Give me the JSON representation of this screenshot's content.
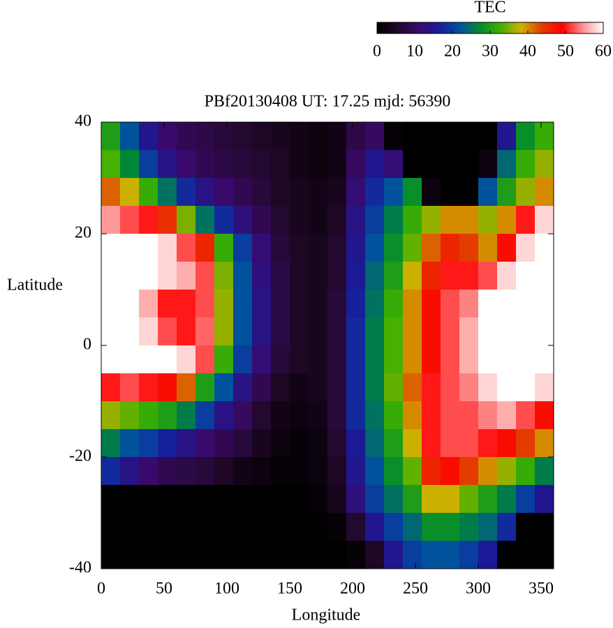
{
  "chart_data": {
    "type": "heatmap",
    "title": "PBf20130408  UT: 17.25  mjd: 56390",
    "x_label": "Longitude",
    "y_label": "Latitude",
    "xlim": [
      0,
      360
    ],
    "ylim": [
      -40,
      40
    ],
    "xticks": [
      0,
      50,
      100,
      150,
      200,
      250,
      300,
      350
    ],
    "yticks": [
      -40,
      -20,
      0,
      20,
      40
    ],
    "x": [
      7.5,
      22.5,
      37.5,
      52.5,
      67.5,
      82.5,
      97.5,
      112.5,
      127.5,
      142.5,
      157.5,
      172.5,
      187.5,
      202.5,
      217.5,
      232.5,
      247.5,
      262.5,
      277.5,
      292.5,
      307.5,
      322.5,
      337.5,
      352.5
    ],
    "y": [
      37.5,
      32.5,
      27.5,
      22.5,
      17.5,
      12.5,
      7.5,
      2.5,
      -2.5,
      -7.5,
      -12.5,
      -17.5,
      -22.5,
      -27.5,
      -32.5,
      -37.5
    ],
    "z": [
      [
        30,
        22,
        15,
        11,
        9,
        8,
        7,
        6,
        5,
        4,
        3,
        2,
        3,
        8,
        10,
        1,
        0,
        0,
        0,
        0,
        0,
        15,
        28,
        32
      ],
      [
        33,
        27,
        20,
        14,
        11,
        9,
        8,
        7,
        6,
        5,
        3,
        2,
        3,
        10,
        15,
        12,
        0,
        0,
        0,
        0,
        2,
        24,
        32,
        36
      ],
      [
        42,
        38,
        32,
        25,
        18,
        14,
        11,
        9,
        7,
        5,
        4,
        3,
        4,
        12,
        18,
        22,
        28,
        2,
        0,
        0,
        22,
        30,
        36,
        40
      ],
      [
        55,
        52,
        50,
        45,
        35,
        25,
        18,
        13,
        9,
        6,
        4,
        3,
        5,
        14,
        20,
        26,
        32,
        36,
        40,
        40,
        36,
        40,
        50,
        58
      ],
      [
        60,
        60,
        60,
        58,
        52,
        46,
        32,
        20,
        12,
        7,
        5,
        4,
        6,
        15,
        22,
        28,
        34,
        42,
        46,
        44,
        40,
        48,
        58,
        60
      ],
      [
        60,
        60,
        60,
        58,
        56,
        52,
        35,
        22,
        13,
        8,
        5,
        4,
        6,
        16,
        24,
        30,
        38,
        46,
        50,
        50,
        52,
        58,
        60,
        60
      ],
      [
        60,
        60,
        56,
        50,
        50,
        52,
        36,
        22,
        14,
        8,
        5,
        4,
        7,
        17,
        25,
        32,
        40,
        48,
        52,
        54,
        60,
        60,
        60,
        60
      ],
      [
        60,
        60,
        58,
        52,
        50,
        53,
        36,
        22,
        14,
        8,
        5,
        4,
        7,
        18,
        26,
        33,
        40,
        48,
        52,
        56,
        60,
        60,
        60,
        60
      ],
      [
        60,
        60,
        60,
        60,
        58,
        52,
        32,
        20,
        12,
        7,
        5,
        4,
        7,
        18,
        26,
        33,
        40,
        48,
        52,
        56,
        60,
        60,
        60,
        60
      ],
      [
        50,
        52,
        50,
        48,
        42,
        30,
        22,
        14,
        9,
        5,
        3,
        4,
        7,
        18,
        26,
        34,
        42,
        50,
        52,
        54,
        58,
        60,
        60,
        58
      ],
      [
        36,
        34,
        32,
        30,
        26,
        20,
        14,
        10,
        6,
        3,
        2,
        3,
        7,
        18,
        25,
        32,
        40,
        50,
        52,
        52,
        54,
        56,
        52,
        48
      ],
      [
        26,
        22,
        20,
        17,
        14,
        11,
        9,
        7,
        4,
        2,
        1,
        2,
        6,
        16,
        24,
        30,
        38,
        50,
        52,
        52,
        50,
        48,
        44,
        40
      ],
      [
        18,
        14,
        11,
        9,
        8,
        7,
        5,
        3,
        2,
        1,
        1,
        2,
        5,
        15,
        22,
        28,
        34,
        46,
        48,
        44,
        40,
        36,
        32,
        26
      ],
      [
        0,
        0,
        0,
        0,
        0,
        0,
        0,
        0,
        0,
        0,
        0,
        1,
        4,
        13,
        20,
        25,
        30,
        38,
        38,
        34,
        30,
        26,
        20,
        15
      ],
      [
        0,
        0,
        0,
        0,
        0,
        0,
        0,
        0,
        0,
        0,
        0,
        0,
        1,
        6,
        15,
        20,
        24,
        28,
        28,
        26,
        24,
        18,
        0,
        0
      ],
      [
        0,
        0,
        0,
        0,
        0,
        0,
        0,
        0,
        0,
        0,
        0,
        0,
        0,
        1,
        5,
        15,
        20,
        22,
        22,
        20,
        16,
        0,
        0,
        0
      ]
    ],
    "colorbar": {
      "title": "TEC",
      "lim": [
        0,
        60
      ],
      "ticks": [
        0,
        10,
        20,
        30,
        40,
        50,
        60
      ],
      "colors": [
        "#000000",
        "#200828",
        "#3a0a6a",
        "#1a1a9a",
        "#0050a0",
        "#008a30",
        "#40b000",
        "#d0b000",
        "#e04000",
        "#ff0000",
        "#ff9090",
        "#ffffff"
      ]
    }
  }
}
